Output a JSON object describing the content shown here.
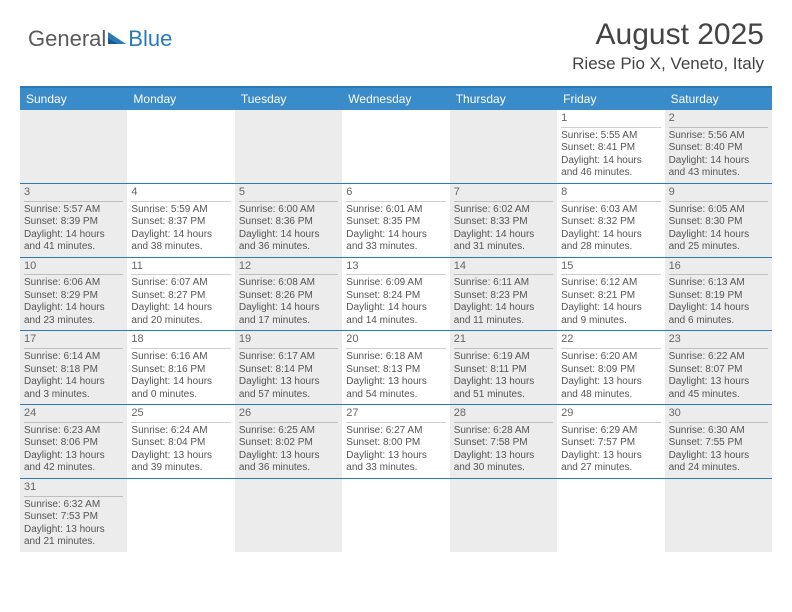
{
  "brand": {
    "name1": "General",
    "name2": "Blue"
  },
  "title": "August 2025",
  "location": "Riese Pio X, Veneto, Italy",
  "colors": {
    "header_bg": "#3a8bc9",
    "rule": "#2a7ab9",
    "shaded": "#ececec",
    "text": "#555555"
  },
  "day_headers": [
    "Sunday",
    "Monday",
    "Tuesday",
    "Wednesday",
    "Thursday",
    "Friday",
    "Saturday"
  ],
  "weeks": [
    [
      {
        "day": "",
        "sunrise": "",
        "sunset": "",
        "daylight": ""
      },
      {
        "day": "",
        "sunrise": "",
        "sunset": "",
        "daylight": ""
      },
      {
        "day": "",
        "sunrise": "",
        "sunset": "",
        "daylight": ""
      },
      {
        "day": "",
        "sunrise": "",
        "sunset": "",
        "daylight": ""
      },
      {
        "day": "",
        "sunrise": "",
        "sunset": "",
        "daylight": ""
      },
      {
        "day": "1",
        "sunrise": "Sunrise: 5:55 AM",
        "sunset": "Sunset: 8:41 PM",
        "daylight": "Daylight: 14 hours and 46 minutes."
      },
      {
        "day": "2",
        "sunrise": "Sunrise: 5:56 AM",
        "sunset": "Sunset: 8:40 PM",
        "daylight": "Daylight: 14 hours and 43 minutes."
      }
    ],
    [
      {
        "day": "3",
        "sunrise": "Sunrise: 5:57 AM",
        "sunset": "Sunset: 8:39 PM",
        "daylight": "Daylight: 14 hours and 41 minutes."
      },
      {
        "day": "4",
        "sunrise": "Sunrise: 5:59 AM",
        "sunset": "Sunset: 8:37 PM",
        "daylight": "Daylight: 14 hours and 38 minutes."
      },
      {
        "day": "5",
        "sunrise": "Sunrise: 6:00 AM",
        "sunset": "Sunset: 8:36 PM",
        "daylight": "Daylight: 14 hours and 36 minutes."
      },
      {
        "day": "6",
        "sunrise": "Sunrise: 6:01 AM",
        "sunset": "Sunset: 8:35 PM",
        "daylight": "Daylight: 14 hours and 33 minutes."
      },
      {
        "day": "7",
        "sunrise": "Sunrise: 6:02 AM",
        "sunset": "Sunset: 8:33 PM",
        "daylight": "Daylight: 14 hours and 31 minutes."
      },
      {
        "day": "8",
        "sunrise": "Sunrise: 6:03 AM",
        "sunset": "Sunset: 8:32 PM",
        "daylight": "Daylight: 14 hours and 28 minutes."
      },
      {
        "day": "9",
        "sunrise": "Sunrise: 6:05 AM",
        "sunset": "Sunset: 8:30 PM",
        "daylight": "Daylight: 14 hours and 25 minutes."
      }
    ],
    [
      {
        "day": "10",
        "sunrise": "Sunrise: 6:06 AM",
        "sunset": "Sunset: 8:29 PM",
        "daylight": "Daylight: 14 hours and 23 minutes."
      },
      {
        "day": "11",
        "sunrise": "Sunrise: 6:07 AM",
        "sunset": "Sunset: 8:27 PM",
        "daylight": "Daylight: 14 hours and 20 minutes."
      },
      {
        "day": "12",
        "sunrise": "Sunrise: 6:08 AM",
        "sunset": "Sunset: 8:26 PM",
        "daylight": "Daylight: 14 hours and 17 minutes."
      },
      {
        "day": "13",
        "sunrise": "Sunrise: 6:09 AM",
        "sunset": "Sunset: 8:24 PM",
        "daylight": "Daylight: 14 hours and 14 minutes."
      },
      {
        "day": "14",
        "sunrise": "Sunrise: 6:11 AM",
        "sunset": "Sunset: 8:23 PM",
        "daylight": "Daylight: 14 hours and 11 minutes."
      },
      {
        "day": "15",
        "sunrise": "Sunrise: 6:12 AM",
        "sunset": "Sunset: 8:21 PM",
        "daylight": "Daylight: 14 hours and 9 minutes."
      },
      {
        "day": "16",
        "sunrise": "Sunrise: 6:13 AM",
        "sunset": "Sunset: 8:19 PM",
        "daylight": "Daylight: 14 hours and 6 minutes."
      }
    ],
    [
      {
        "day": "17",
        "sunrise": "Sunrise: 6:14 AM",
        "sunset": "Sunset: 8:18 PM",
        "daylight": "Daylight: 14 hours and 3 minutes."
      },
      {
        "day": "18",
        "sunrise": "Sunrise: 6:16 AM",
        "sunset": "Sunset: 8:16 PM",
        "daylight": "Daylight: 14 hours and 0 minutes."
      },
      {
        "day": "19",
        "sunrise": "Sunrise: 6:17 AM",
        "sunset": "Sunset: 8:14 PM",
        "daylight": "Daylight: 13 hours and 57 minutes."
      },
      {
        "day": "20",
        "sunrise": "Sunrise: 6:18 AM",
        "sunset": "Sunset: 8:13 PM",
        "daylight": "Daylight: 13 hours and 54 minutes."
      },
      {
        "day": "21",
        "sunrise": "Sunrise: 6:19 AM",
        "sunset": "Sunset: 8:11 PM",
        "daylight": "Daylight: 13 hours and 51 minutes."
      },
      {
        "day": "22",
        "sunrise": "Sunrise: 6:20 AM",
        "sunset": "Sunset: 8:09 PM",
        "daylight": "Daylight: 13 hours and 48 minutes."
      },
      {
        "day": "23",
        "sunrise": "Sunrise: 6:22 AM",
        "sunset": "Sunset: 8:07 PM",
        "daylight": "Daylight: 13 hours and 45 minutes."
      }
    ],
    [
      {
        "day": "24",
        "sunrise": "Sunrise: 6:23 AM",
        "sunset": "Sunset: 8:06 PM",
        "daylight": "Daylight: 13 hours and 42 minutes."
      },
      {
        "day": "25",
        "sunrise": "Sunrise: 6:24 AM",
        "sunset": "Sunset: 8:04 PM",
        "daylight": "Daylight: 13 hours and 39 minutes."
      },
      {
        "day": "26",
        "sunrise": "Sunrise: 6:25 AM",
        "sunset": "Sunset: 8:02 PM",
        "daylight": "Daylight: 13 hours and 36 minutes."
      },
      {
        "day": "27",
        "sunrise": "Sunrise: 6:27 AM",
        "sunset": "Sunset: 8:00 PM",
        "daylight": "Daylight: 13 hours and 33 minutes."
      },
      {
        "day": "28",
        "sunrise": "Sunrise: 6:28 AM",
        "sunset": "Sunset: 7:58 PM",
        "daylight": "Daylight: 13 hours and 30 minutes."
      },
      {
        "day": "29",
        "sunrise": "Sunrise: 6:29 AM",
        "sunset": "Sunset: 7:57 PM",
        "daylight": "Daylight: 13 hours and 27 minutes."
      },
      {
        "day": "30",
        "sunrise": "Sunrise: 6:30 AM",
        "sunset": "Sunset: 7:55 PM",
        "daylight": "Daylight: 13 hours and 24 minutes."
      }
    ],
    [
      {
        "day": "31",
        "sunrise": "Sunrise: 6:32 AM",
        "sunset": "Sunset: 7:53 PM",
        "daylight": "Daylight: 13 hours and 21 minutes."
      },
      {
        "day": "",
        "sunrise": "",
        "sunset": "",
        "daylight": ""
      },
      {
        "day": "",
        "sunrise": "",
        "sunset": "",
        "daylight": ""
      },
      {
        "day": "",
        "sunrise": "",
        "sunset": "",
        "daylight": ""
      },
      {
        "day": "",
        "sunrise": "",
        "sunset": "",
        "daylight": ""
      },
      {
        "day": "",
        "sunrise": "",
        "sunset": "",
        "daylight": ""
      },
      {
        "day": "",
        "sunrise": "",
        "sunset": "",
        "daylight": ""
      }
    ]
  ]
}
